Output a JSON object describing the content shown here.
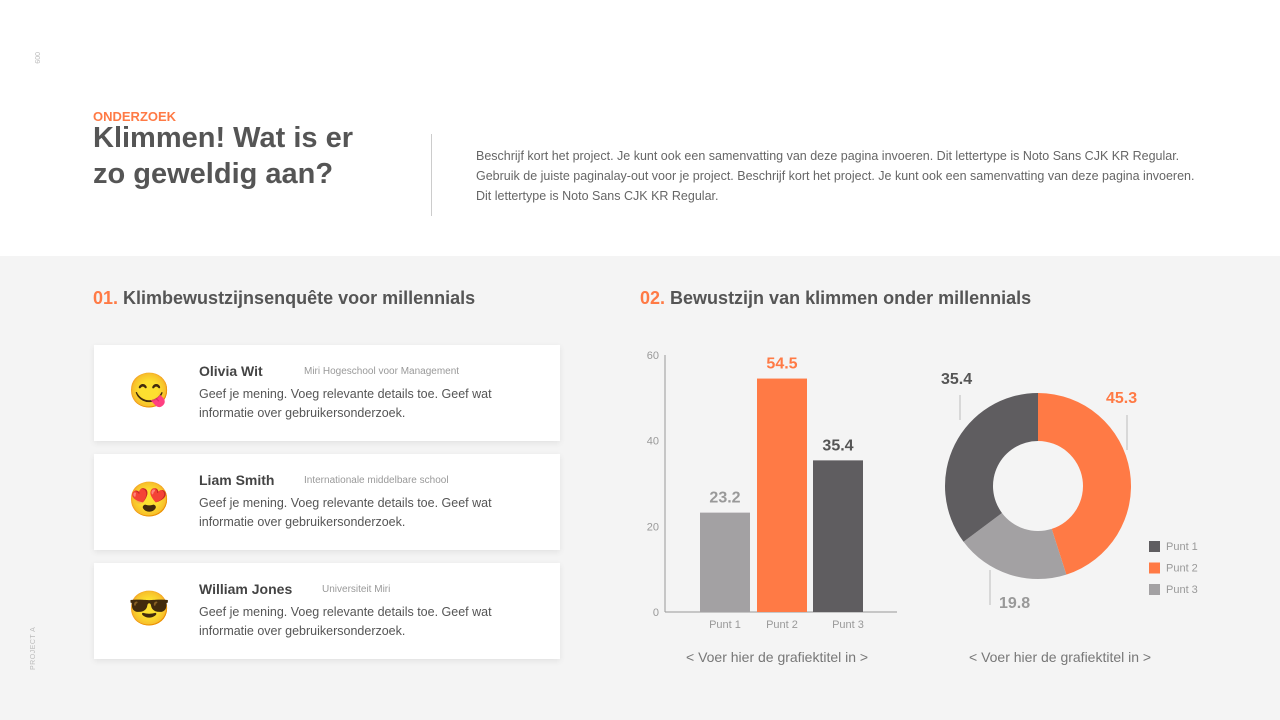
{
  "page": {
    "number": "009",
    "project": "PROJECT A"
  },
  "header": {
    "kicker": "ONDERZOEK",
    "title": "Klimmen! Wat is er zo geweldig aan?",
    "description": "Beschrijf kort het project. Je kunt ook een samenvatting van deze pagina invoeren. Dit lettertype is Noto Sans CJK KR Regular. Gebruik de juiste paginalay-out voor je project. Beschrijf kort het project. Je kunt ook een samenvatting van deze pagina invoeren. Dit lettertype is Noto Sans CJK KR Regular."
  },
  "section1": {
    "number": "01.",
    "title": "Klimbewustzijnsenquête voor millennials",
    "cards": [
      {
        "emoji": "😋",
        "name": "Olivia Wit",
        "org": "Miri Hogeschool voor Management",
        "text": "Geef je mening. Voeg relevante details toe. Geef wat informatie over gebruikersonderzoek."
      },
      {
        "emoji": "😍",
        "name": "Liam Smith",
        "org": "Internationale middelbare school",
        "text": "Geef je mening. Voeg relevante details toe. Geef wat informatie over gebruikersonderzoek."
      },
      {
        "emoji": "😎",
        "name": "William Jones",
        "org": "Universiteit Miri",
        "text": "Geef je mening. Voeg relevante details toe. Geef wat informatie over gebruikersonderzoek."
      }
    ]
  },
  "section2": {
    "number": "02.",
    "title": "Bewustzijn van klimmen onder millennials"
  },
  "chart_data": [
    {
      "type": "bar",
      "categories": [
        "Punt 1",
        "Punt 2",
        "Punt 3"
      ],
      "values": [
        23.2,
        54.5,
        35.4
      ],
      "colors": [
        "#a3a1a3",
        "#ff7a45",
        "#5f5d60"
      ],
      "ylim": [
        0,
        60
      ],
      "yticks": [
        0,
        20,
        40,
        60
      ],
      "caption": "< Voer hier de grafiektitel in >"
    },
    {
      "type": "pie",
      "donut": true,
      "categories": [
        "Punt 1",
        "Punt 2",
        "Punt 3"
      ],
      "values": [
        35.4,
        45.3,
        19.8
      ],
      "colors": [
        "#5f5d60",
        "#ff7a45",
        "#a3a1a3"
      ],
      "legend": "bottom-right",
      "caption": "< Voer hier de grafiektitel in >"
    }
  ]
}
